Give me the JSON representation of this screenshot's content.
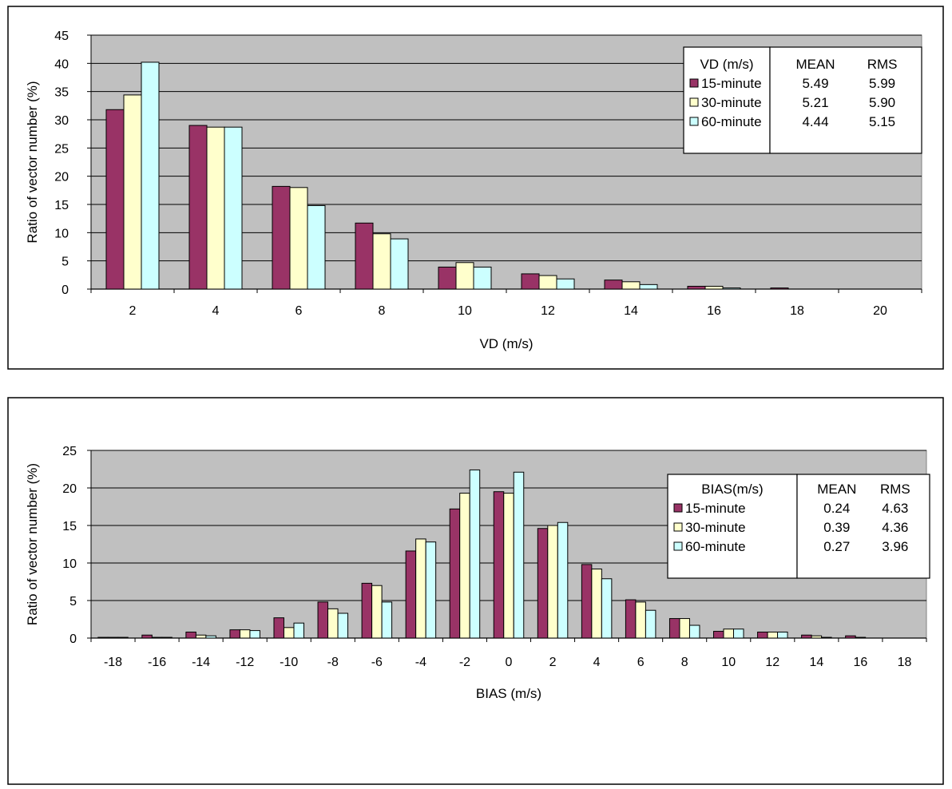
{
  "chart_data": [
    {
      "type": "bar",
      "title": "",
      "xlabel": "VD (m/s)",
      "ylabel": "Ratio of vector number (%)",
      "ylim": [
        0,
        45
      ],
      "yticks": [
        0,
        5,
        10,
        15,
        20,
        25,
        30,
        35,
        40,
        45
      ],
      "grid": true,
      "legend_position": "top-right",
      "categories": [
        "2",
        "4",
        "6",
        "8",
        "10",
        "12",
        "14",
        "16",
        "18",
        "20"
      ],
      "series": [
        {
          "name": "15-minute",
          "color": "#993366",
          "values": [
            31.8,
            29.0,
            18.2,
            11.7,
            3.9,
            2.7,
            1.6,
            0.5,
            0.2,
            0
          ]
        },
        {
          "name": "30-minute",
          "color": "#FFFFCC",
          "values": [
            34.4,
            28.7,
            18.0,
            9.8,
            4.7,
            2.4,
            1.3,
            0.5,
            0,
            0
          ]
        },
        {
          "name": "60-minute",
          "color": "#CCFFFF",
          "values": [
            40.2,
            28.7,
            14.8,
            8.9,
            3.9,
            1.8,
            0.8,
            0.2,
            0,
            0
          ]
        }
      ],
      "legend": {
        "header": "VD (m/s)",
        "col_headers": [
          "MEAN",
          "RMS"
        ],
        "rows": [
          {
            "name": "15-minute",
            "mean": "5.49",
            "rms": "5.99"
          },
          {
            "name": "30-minute",
            "mean": "5.21",
            "rms": "5.90"
          },
          {
            "name": "60-minute",
            "mean": "4.44",
            "rms": "5.15"
          }
        ]
      }
    },
    {
      "type": "bar",
      "title": "",
      "xlabel": "BIAS (m/s)",
      "ylabel": "Ratio of vector number (%)",
      "ylim": [
        0,
        25
      ],
      "yticks": [
        0,
        5,
        10,
        15,
        20,
        25
      ],
      "grid": true,
      "legend_position": "top-right",
      "categories": [
        "-18",
        "-16",
        "-14",
        "-12",
        "-10",
        "-8",
        "-6",
        "-4",
        "-2",
        "0",
        "2",
        "4",
        "6",
        "8",
        "10",
        "12",
        "14",
        "16",
        "18"
      ],
      "series": [
        {
          "name": "15-minute",
          "color": "#993366",
          "values": [
            0.1,
            0.4,
            0.8,
            1.1,
            2.7,
            4.8,
            7.3,
            11.6,
            17.2,
            19.5,
            14.6,
            9.8,
            5.1,
            2.6,
            0.9,
            0.8,
            0.4,
            0.3,
            0
          ]
        },
        {
          "name": "30-minute",
          "color": "#FFFFCC",
          "values": [
            0.1,
            0.1,
            0.4,
            1.1,
            1.4,
            3.9,
            7.0,
            13.2,
            19.3,
            19.3,
            15.0,
            9.2,
            4.8,
            2.6,
            1.2,
            0.8,
            0.3,
            0.1,
            0
          ]
        },
        {
          "name": "60-minute",
          "color": "#CCFFFF",
          "values": [
            0.1,
            0.1,
            0.3,
            1.0,
            2.0,
            3.3,
            4.8,
            12.8,
            22.4,
            22.1,
            15.4,
            7.9,
            3.7,
            1.7,
            1.2,
            0.8,
            0.1,
            0,
            0
          ]
        }
      ],
      "legend": {
        "header": "BIAS(m/s)",
        "col_headers": [
          "MEAN",
          "RMS"
        ],
        "rows": [
          {
            "name": "15-minute",
            "mean": "0.24",
            "rms": "4.63"
          },
          {
            "name": "30-minute",
            "mean": "0.39",
            "rms": "4.36"
          },
          {
            "name": "60-minute",
            "mean": "0.27",
            "rms": "3.96"
          }
        ]
      }
    }
  ]
}
